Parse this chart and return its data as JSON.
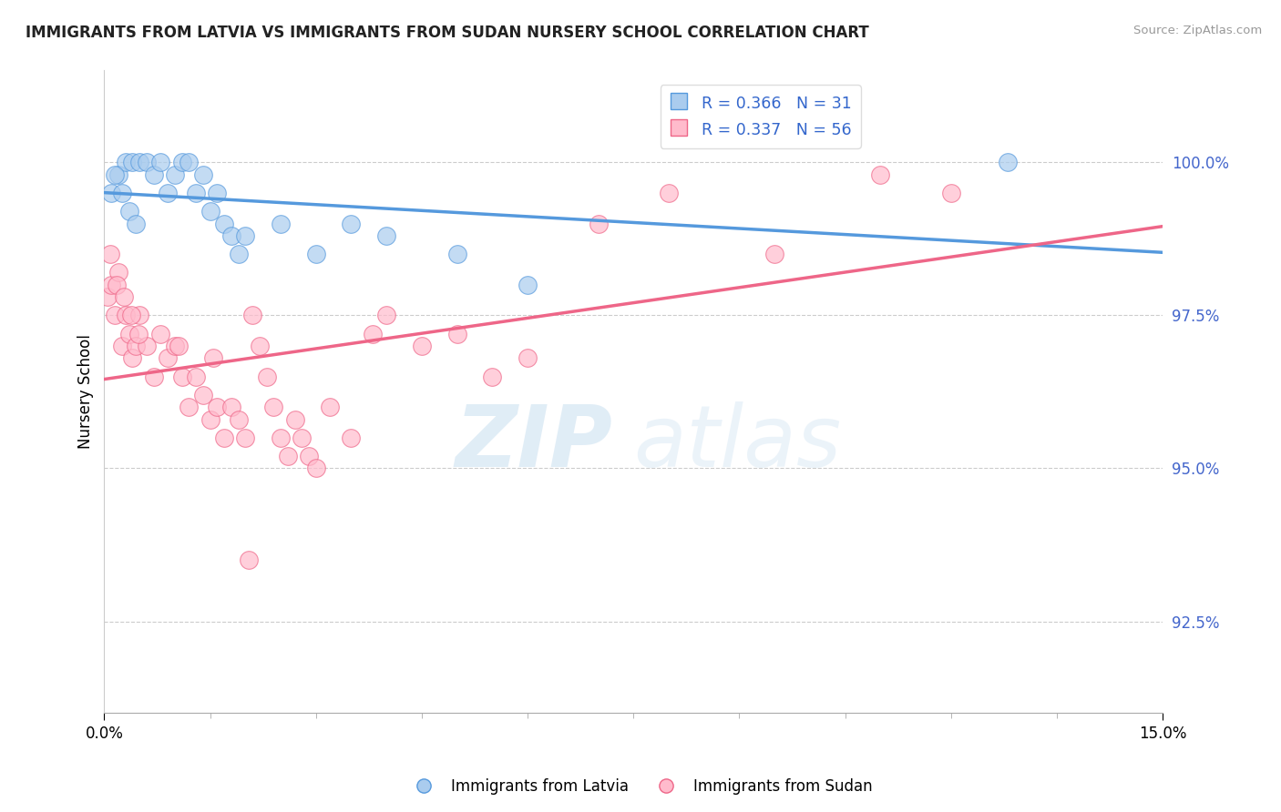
{
  "title": "IMMIGRANTS FROM LATVIA VS IMMIGRANTS FROM SUDAN NURSERY SCHOOL CORRELATION CHART",
  "source": "Source: ZipAtlas.com",
  "ylabel": "Nursery School",
  "ytick_vals": [
    92.5,
    95.0,
    97.5,
    100.0
  ],
  "xmin": 0.0,
  "xmax": 15.0,
  "ymin": 91.0,
  "ymax": 101.5,
  "color_latvia": "#aaccee",
  "color_sudan": "#ffbbcc",
  "line_color_latvia": "#5599dd",
  "line_color_sudan": "#ee6688",
  "watermark_zip": "ZIP",
  "watermark_atlas": "atlas",
  "legend_latvia_r": "R = 0.366",
  "legend_latvia_n": "N = 31",
  "legend_sudan_r": "R = 0.337",
  "legend_sudan_n": "N = 56",
  "latvia_x": [
    0.1,
    0.2,
    0.3,
    0.4,
    0.5,
    0.6,
    0.7,
    0.8,
    0.9,
    1.0,
    1.1,
    1.2,
    1.3,
    1.4,
    1.5,
    1.6,
    1.7,
    1.8,
    1.9,
    2.0,
    2.5,
    3.0,
    3.5,
    4.0,
    5.0,
    6.0,
    0.15,
    0.25,
    0.35,
    12.8,
    0.45
  ],
  "latvia_y": [
    99.5,
    99.8,
    100.0,
    100.0,
    100.0,
    100.0,
    99.8,
    100.0,
    99.5,
    99.8,
    100.0,
    100.0,
    99.5,
    99.8,
    99.2,
    99.5,
    99.0,
    98.8,
    98.5,
    98.8,
    99.0,
    98.5,
    99.0,
    98.8,
    98.5,
    98.0,
    99.8,
    99.5,
    99.2,
    100.0,
    99.0
  ],
  "sudan_x": [
    0.05,
    0.1,
    0.15,
    0.2,
    0.25,
    0.3,
    0.35,
    0.4,
    0.45,
    0.5,
    0.6,
    0.7,
    0.8,
    0.9,
    1.0,
    1.1,
    1.2,
    1.3,
    1.4,
    1.5,
    1.6,
    1.7,
    1.8,
    1.9,
    2.0,
    2.1,
    2.2,
    2.3,
    2.4,
    2.5,
    2.6,
    2.7,
    2.8,
    2.9,
    3.0,
    3.2,
    3.5,
    3.8,
    4.0,
    4.5,
    5.0,
    5.5,
    6.0,
    7.0,
    8.0,
    9.5,
    11.0,
    12.0,
    0.08,
    0.18,
    0.28,
    0.38,
    0.48,
    1.05,
    1.55,
    2.05
  ],
  "sudan_y": [
    97.8,
    98.0,
    97.5,
    98.2,
    97.0,
    97.5,
    97.2,
    96.8,
    97.0,
    97.5,
    97.0,
    96.5,
    97.2,
    96.8,
    97.0,
    96.5,
    96.0,
    96.5,
    96.2,
    95.8,
    96.0,
    95.5,
    96.0,
    95.8,
    95.5,
    97.5,
    97.0,
    96.5,
    96.0,
    95.5,
    95.2,
    95.8,
    95.5,
    95.2,
    95.0,
    96.0,
    95.5,
    97.2,
    97.5,
    97.0,
    97.2,
    96.5,
    96.8,
    99.0,
    99.5,
    98.5,
    99.8,
    99.5,
    98.5,
    98.0,
    97.8,
    97.5,
    97.2,
    97.0,
    96.8,
    93.5
  ]
}
